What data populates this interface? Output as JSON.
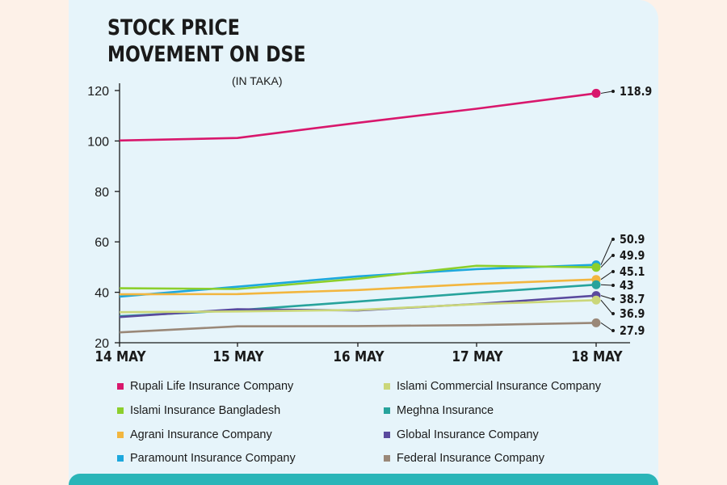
{
  "chart_data": {
    "type": "line",
    "title_line1": "STOCK PRICE",
    "title_line2": "MOVEMENT ON DSE",
    "subtitle": "(IN TAKA)",
    "categories": [
      "14 MAY",
      "15 MAY",
      "16 MAY",
      "17 MAY",
      "18 MAY"
    ],
    "ylim": [
      20,
      120
    ],
    "yticks": [
      20,
      40,
      60,
      80,
      100,
      120
    ],
    "series": [
      {
        "name": "Rupali Life Insurance Company",
        "color": "#d8176c",
        "values": [
          100.2,
          101.2,
          107.2,
          112.8,
          118.9
        ],
        "label": "118.9"
      },
      {
        "name": "Paramount Insurance Company",
        "color": "#1da8dd",
        "values": [
          38.3,
          42.2,
          46.3,
          49.2,
          50.9
        ],
        "label": "50.9"
      },
      {
        "name": "Islami Insurance Bangladesh",
        "color": "#8ccf2c",
        "values": [
          41.6,
          41.3,
          45.4,
          50.5,
          49.9
        ],
        "label": "49.9"
      },
      {
        "name": "Agrani Insurance Company",
        "color": "#f2b63f",
        "values": [
          39.2,
          39.3,
          40.9,
          43.3,
          45.1
        ],
        "label": "45.1"
      },
      {
        "name": "Meghna Insurance",
        "color": "#27a39c",
        "values": [
          30.5,
          32.9,
          36.3,
          39.8,
          43.0
        ],
        "label": "43"
      },
      {
        "name": "Global Insurance Company",
        "color": "#5a4a9e",
        "values": [
          30.2,
          33.3,
          32.8,
          35.4,
          38.7
        ],
        "label": "38.7"
      },
      {
        "name": "Islami Commercial Insurance Company",
        "color": "#cbd77a",
        "values": [
          32.1,
          32.4,
          33.0,
          35.3,
          36.9
        ],
        "label": "36.9"
      },
      {
        "name": "Federal Insurance Company",
        "color": "#9a8878",
        "values": [
          24.1,
          26.5,
          26.6,
          27.0,
          27.9
        ],
        "label": "27.9"
      }
    ]
  },
  "legend": {
    "left": [
      {
        "label": "Rupali Life Insurance Company",
        "color": "#d8176c"
      },
      {
        "label": "Islami Insurance Bangladesh",
        "color": "#8ccf2c"
      },
      {
        "label": "Agrani Insurance Company",
        "color": "#f2b63f"
      },
      {
        "label": "Paramount Insurance Company",
        "color": "#1da8dd"
      }
    ],
    "right": [
      {
        "label": "Islami Commercial Insurance Company",
        "color": "#cbd77a"
      },
      {
        "label": "Meghna Insurance",
        "color": "#27a39c"
      },
      {
        "label": "Global Insurance Company",
        "color": "#5a4a9e"
      },
      {
        "label": "Federal Insurance Company",
        "color": "#9a8878"
      }
    ]
  },
  "colors": {
    "card": "#e6f4fa",
    "accent": "#2ab5b8"
  }
}
